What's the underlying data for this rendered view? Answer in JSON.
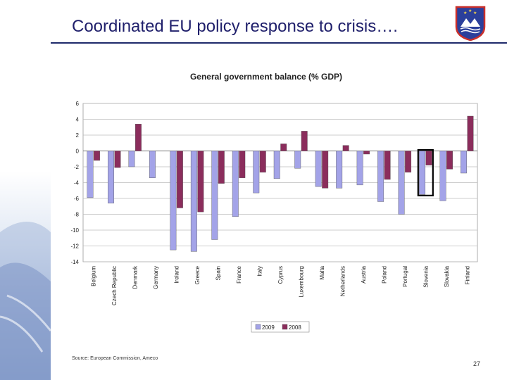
{
  "slide": {
    "title": "Coordinated EU policy response to crisis….",
    "source": "Source: European Commission, Ameco",
    "page_number": "27"
  },
  "colors": {
    "title": "#1f1f6b",
    "series_2009": "#a3a3e8",
    "series_2008": "#8b2d5c",
    "highlight_outline": "#000000"
  },
  "chart_data": {
    "type": "bar",
    "title": "General government balance (% GDP)",
    "categories": [
      "Belgium",
      "Czech Republic",
      "Denmark",
      "Germany",
      "Ireland",
      "Greece",
      "Spain",
      "France",
      "Italy",
      "Cyprus",
      "Luxembourg",
      "Malta",
      "Netherlands",
      "Austria",
      "Poland",
      "Portugal",
      "Slovenia",
      "Slovakia",
      "Finland"
    ],
    "series": [
      {
        "name": "2009",
        "color": "#a3a3e8",
        "values": [
          -5.9,
          -6.6,
          -2.0,
          -3.4,
          -12.5,
          -12.7,
          -11.2,
          -8.3,
          -5.3,
          -3.5,
          -2.2,
          -4.5,
          -4.7,
          -4.3,
          -6.4,
          -8.0,
          -5.5,
          -6.3,
          -2.8
        ]
      },
      {
        "name": "2008",
        "color": "#8b2d5c",
        "values": [
          -1.2,
          -2.1,
          3.4,
          0.0,
          -7.2,
          -7.7,
          -4.1,
          -3.4,
          -2.7,
          0.9,
          2.5,
          -4.7,
          0.7,
          -0.4,
          -3.6,
          -2.7,
          -1.8,
          -2.3,
          4.4
        ]
      }
    ],
    "highlighted_category": "Slovenia",
    "yticks": [
      6,
      4,
      2,
      0,
      -2,
      -4,
      -6,
      -8,
      -10,
      -12,
      -14
    ],
    "ylim": [
      -14,
      6
    ],
    "grid": true,
    "legend_position": "bottom"
  }
}
